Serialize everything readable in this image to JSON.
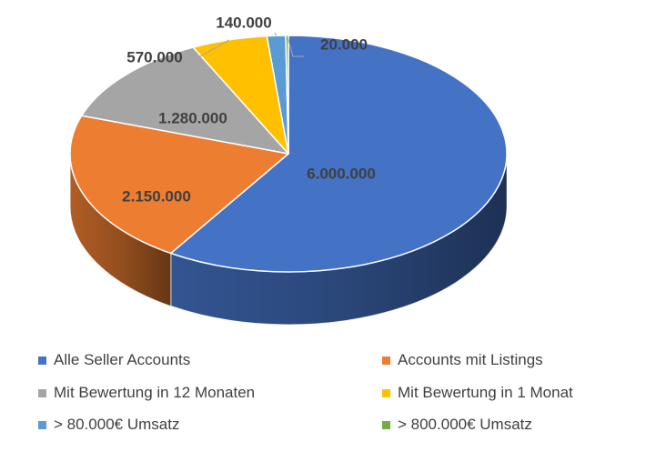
{
  "chart_data": {
    "type": "pie",
    "style": "3d",
    "title": "",
    "legend_position": "bottom",
    "slices": [
      {
        "label": "Alle Seller Accounts",
        "value": 6000000,
        "value_label": "6.000.000",
        "color": "#4472C4"
      },
      {
        "label": "Accounts mit Listings",
        "value": 2150000,
        "value_label": "2.150.000",
        "color": "#ED7D31"
      },
      {
        "label": "Mit Bewertung in 12 Monaten",
        "value": 1280000,
        "value_label": "1.280.000",
        "color": "#A5A5A5"
      },
      {
        "label": "Mit Bewertung in 1 Monat",
        "value": 570000,
        "value_label": "570.000",
        "color": "#FFC000"
      },
      {
        "label": "> 80.000€ Umsatz",
        "value": 140000,
        "value_label": "140.000",
        "color": "#5B9BD5"
      },
      {
        "label": "> 800.000€ Umsatz",
        "value": 20000,
        "value_label": "20.000",
        "color": "#70AD47"
      }
    ]
  }
}
